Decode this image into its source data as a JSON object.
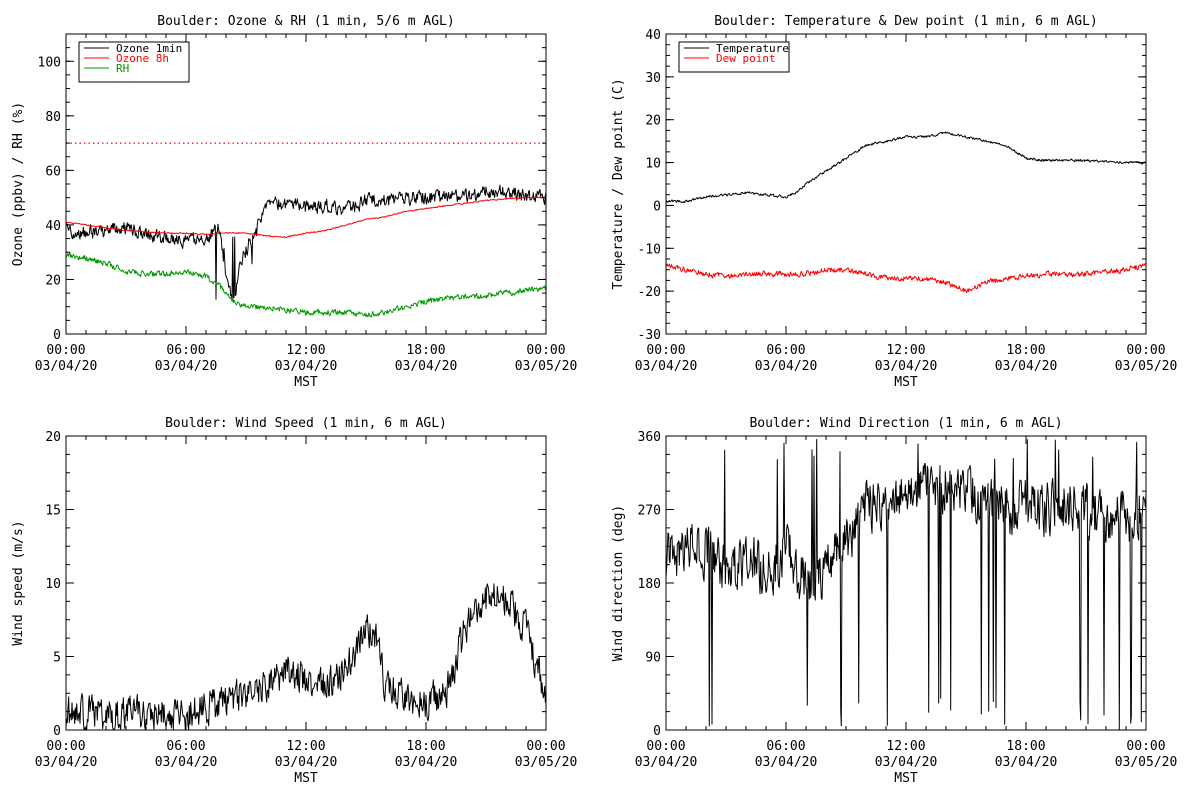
{
  "chart_data": [
    {
      "id": "ozone-rh",
      "type": "line",
      "title": "Boulder: Ozone & RH (1 min, 5/6 m AGL)",
      "xlabel": "MST",
      "ylabel": "Ozone (ppbv) / RH (%)",
      "xlim": [
        0,
        24
      ],
      "ylim": [
        0,
        110
      ],
      "xticks": [
        {
          "value": 0,
          "time": "00:00",
          "date": "03/04/20"
        },
        {
          "value": 6,
          "time": "06:00",
          "date": "03/04/20"
        },
        {
          "value": 12,
          "time": "12:00",
          "date": "03/04/20"
        },
        {
          "value": 18,
          "time": "18:00",
          "date": "03/04/20"
        },
        {
          "value": 24,
          "time": "00:00",
          "date": "03/05/20"
        }
      ],
      "yticks": [
        0,
        20,
        40,
        60,
        80,
        100
      ],
      "reference_line": {
        "value": 70,
        "color": "#ff0000",
        "style": "dotted"
      },
      "legend": {
        "position": "top-left"
      },
      "series": [
        {
          "name": "Ozone 1min",
          "color": "#000000",
          "noise": 3.5,
          "points": [
            [
              0,
              38
            ],
            [
              1,
              37
            ],
            [
              2,
              38
            ],
            [
              3,
              39
            ],
            [
              4,
              37
            ],
            [
              5,
              35
            ],
            [
              6,
              34
            ],
            [
              7,
              35
            ],
            [
              7.6,
              40
            ],
            [
              8,
              22
            ],
            [
              8.4,
              12
            ],
            [
              8.8,
              28
            ],
            [
              9.3,
              34
            ],
            [
              9.7,
              43
            ],
            [
              10,
              47
            ],
            [
              11,
              48
            ],
            [
              12,
              46
            ],
            [
              13,
              47
            ],
            [
              14,
              46
            ],
            [
              14.7,
              48
            ],
            [
              15,
              49
            ],
            [
              16,
              49
            ],
            [
              17,
              50
            ],
            [
              18,
              50
            ],
            [
              19,
              50
            ],
            [
              20,
              51
            ],
            [
              21,
              52
            ],
            [
              22,
              52
            ],
            [
              23,
              51
            ],
            [
              24,
              50
            ]
          ]
        },
        {
          "name": "Ozone 8h",
          "color": "#ff0000",
          "noise": 0.3,
          "points": [
            [
              0,
              41
            ],
            [
              1,
              40
            ],
            [
              2,
              39
            ],
            [
              3,
              38
            ],
            [
              4,
              37.5
            ],
            [
              5,
              37
            ],
            [
              6,
              37
            ],
            [
              7,
              36.5
            ],
            [
              8,
              37
            ],
            [
              9,
              37
            ],
            [
              10,
              36
            ],
            [
              11,
              35.5
            ],
            [
              12,
              37
            ],
            [
              13,
              38
            ],
            [
              14,
              40
            ],
            [
              15,
              42
            ],
            [
              16,
              43
            ],
            [
              17,
              45
            ],
            [
              18,
              46
            ],
            [
              19,
              47
            ],
            [
              20,
              48
            ],
            [
              21,
              49
            ],
            [
              22,
              49.5
            ],
            [
              23,
              50
            ],
            [
              24,
              50
            ]
          ]
        },
        {
          "name": "RH",
          "color": "#009900",
          "noise": 1.5,
          "points": [
            [
              0,
              29
            ],
            [
              1,
              28
            ],
            [
              2,
              26
            ],
            [
              3,
              23
            ],
            [
              4,
              22
            ],
            [
              5,
              22
            ],
            [
              6,
              23
            ],
            [
              7,
              21
            ],
            [
              7.5,
              19
            ],
            [
              8,
              15
            ],
            [
              8.5,
              11
            ],
            [
              9,
              10
            ],
            [
              10,
              10
            ],
            [
              11,
              9
            ],
            [
              12,
              8
            ],
            [
              13,
              8
            ],
            [
              14,
              8
            ],
            [
              15,
              7
            ],
            [
              16,
              8
            ],
            [
              17,
              10
            ],
            [
              18,
              12
            ],
            [
              19,
              13
            ],
            [
              20,
              14
            ],
            [
              21,
              14
            ],
            [
              22,
              15
            ],
            [
              23,
              16
            ],
            [
              24,
              17
            ]
          ]
        }
      ]
    },
    {
      "id": "temp-dew",
      "type": "line",
      "title": "Boulder: Temperature & Dew point (1 min, 6 m AGL)",
      "xlabel": "MST",
      "ylabel": "Temperature / Dew point (C)",
      "xlim": [
        0,
        24
      ],
      "ylim": [
        -30,
        40
      ],
      "xticks": [
        {
          "value": 0,
          "time": "00:00",
          "date": "03/04/20"
        },
        {
          "value": 6,
          "time": "06:00",
          "date": "03/04/20"
        },
        {
          "value": 12,
          "time": "12:00",
          "date": "03/04/20"
        },
        {
          "value": 18,
          "time": "18:00",
          "date": "03/04/20"
        },
        {
          "value": 24,
          "time": "00:00",
          "date": "03/05/20"
        }
      ],
      "yticks": [
        -30,
        -20,
        -10,
        0,
        10,
        20,
        30,
        40
      ],
      "legend": {
        "position": "top-left"
      },
      "series": [
        {
          "name": "Temperature",
          "color": "#000000",
          "noise": 0.4,
          "points": [
            [
              0,
              1
            ],
            [
              1,
              1
            ],
            [
              2,
              2
            ],
            [
              3,
              2.5
            ],
            [
              4,
              3
            ],
            [
              5,
              2.5
            ],
            [
              6,
              2
            ],
            [
              6.5,
              3
            ],
            [
              7,
              5
            ],
            [
              8,
              8
            ],
            [
              9,
              11
            ],
            [
              10,
              14
            ],
            [
              11,
              15
            ],
            [
              12,
              16
            ],
            [
              13,
              16
            ],
            [
              14,
              17
            ],
            [
              15,
              16
            ],
            [
              16,
              15
            ],
            [
              17,
              14
            ],
            [
              18,
              11
            ],
            [
              19,
              10.5
            ],
            [
              20,
              10.5
            ],
            [
              21,
              10.5
            ],
            [
              22,
              10.2
            ],
            [
              23,
              10
            ],
            [
              24,
              10
            ]
          ]
        },
        {
          "name": "Dew point",
          "color": "#ff0000",
          "noise": 0.9,
          "points": [
            [
              0,
              -14
            ],
            [
              1,
              -15
            ],
            [
              2,
              -16
            ],
            [
              3,
              -16.5
            ],
            [
              4,
              -16
            ],
            [
              5,
              -16
            ],
            [
              6,
              -16
            ],
            [
              7,
              -16
            ],
            [
              8,
              -15
            ],
            [
              9,
              -15
            ],
            [
              10,
              -16
            ],
            [
              11,
              -17
            ],
            [
              12,
              -17
            ],
            [
              13,
              -17
            ],
            [
              14,
              -18
            ],
            [
              15,
              -20
            ],
            [
              16,
              -18
            ],
            [
              17,
              -17
            ],
            [
              18,
              -16.5
            ],
            [
              19,
              -16
            ],
            [
              20,
              -16
            ],
            [
              21,
              -16
            ],
            [
              22,
              -15.5
            ],
            [
              23,
              -15
            ],
            [
              24,
              -14
            ]
          ]
        }
      ]
    },
    {
      "id": "wind-speed",
      "type": "line",
      "title": "Boulder: Wind Speed (1 min, 6 m AGL)",
      "xlabel": "MST",
      "ylabel": "Wind speed (m/s)",
      "xlim": [
        0,
        24
      ],
      "ylim": [
        0,
        20
      ],
      "xticks": [
        {
          "value": 0,
          "time": "00:00",
          "date": "03/04/20"
        },
        {
          "value": 6,
          "time": "06:00",
          "date": "03/04/20"
        },
        {
          "value": 12,
          "time": "12:00",
          "date": "03/04/20"
        },
        {
          "value": 18,
          "time": "18:00",
          "date": "03/04/20"
        },
        {
          "value": 24,
          "time": "00:00",
          "date": "03/05/20"
        }
      ],
      "yticks": [
        0,
        5,
        10,
        15,
        20
      ],
      "series": [
        {
          "name": "",
          "color": "#000000",
          "noise": 1.6,
          "points": [
            [
              0,
              1.2
            ],
            [
              2,
              1
            ],
            [
              4,
              1.2
            ],
            [
              6,
              1
            ],
            [
              7,
              1.5
            ],
            [
              8,
              2
            ],
            [
              9,
              2.5
            ],
            [
              10,
              3
            ],
            [
              11,
              4
            ],
            [
              12,
              3.5
            ],
            [
              13,
              3
            ],
            [
              14,
              4
            ],
            [
              15,
              7
            ],
            [
              15.5,
              6
            ],
            [
              16,
              3
            ],
            [
              17,
              2
            ],
            [
              18,
              2
            ],
            [
              19,
              2.5
            ],
            [
              20,
              7
            ],
            [
              21,
              9
            ],
            [
              22,
              9
            ],
            [
              23,
              7
            ],
            [
              24,
              2
            ]
          ]
        }
      ]
    },
    {
      "id": "wind-direction",
      "type": "line",
      "title": "Boulder: Wind Direction (1 min, 6 m AGL)",
      "xlabel": "MST",
      "ylabel": "Wind direction (deg)",
      "xlim": [
        0,
        24
      ],
      "ylim": [
        0,
        360
      ],
      "xticks": [
        {
          "value": 0,
          "time": "00:00",
          "date": "03/04/20"
        },
        {
          "value": 6,
          "time": "06:00",
          "date": "03/04/20"
        },
        {
          "value": 12,
          "time": "12:00",
          "date": "03/04/20"
        },
        {
          "value": 18,
          "time": "18:00",
          "date": "03/04/20"
        },
        {
          "value": 24,
          "time": "00:00",
          "date": "03/05/20"
        }
      ],
      "yticks": [
        0,
        90,
        180,
        270,
        360
      ],
      "series": [
        {
          "name": "",
          "color": "#000000",
          "noise": 45,
          "points": [
            [
              0,
              210
            ],
            [
              1,
              230
            ],
            [
              2,
              220
            ],
            [
              3,
              200
            ],
            [
              4,
              210
            ],
            [
              5,
              190
            ],
            [
              6,
              220
            ],
            [
              7,
              180
            ],
            [
              8,
              200
            ],
            [
              9,
              230
            ],
            [
              10,
              280
            ],
            [
              11,
              270
            ],
            [
              12,
              290
            ],
            [
              13,
              300
            ],
            [
              14,
              300
            ],
            [
              15,
              290
            ],
            [
              16,
              280
            ],
            [
              17,
              270
            ],
            [
              18,
              280
            ],
            [
              19,
              270
            ],
            [
              20,
              275
            ],
            [
              21,
              270
            ],
            [
              22,
              265
            ],
            [
              23,
              260
            ],
            [
              24,
              280
            ]
          ]
        }
      ]
    }
  ]
}
